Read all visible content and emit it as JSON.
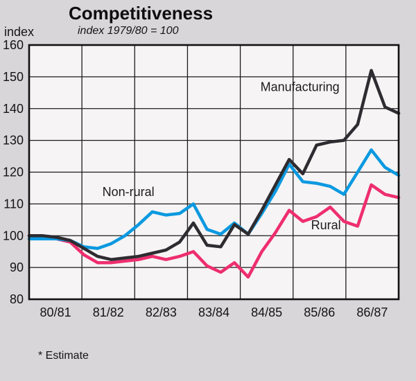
{
  "header": {
    "title": "Competitiveness",
    "subtitle": "index 1979/80 = 100"
  },
  "footnote": "* Estimate",
  "y_axis_title": "index",
  "colors": {
    "background": "#d8d6d8",
    "plot_background": "#f6f4f5",
    "grid": "#1c1c1c",
    "frame": "#111111",
    "text": "#141414",
    "manufacturing": "#2e2c30",
    "non_rural": "#0b99e0",
    "rural": "#ee2e6e"
  },
  "chart_data": {
    "type": "line",
    "title": "Competitiveness",
    "subtitle": "index 1979/80 = 100",
    "ylabel": "index",
    "ylim": [
      80,
      160
    ],
    "ytick_step": 10,
    "y_ticks": [
      80,
      90,
      100,
      110,
      120,
      130,
      140,
      150,
      160
    ],
    "grid": true,
    "categories": [
      "80/81",
      "81/82",
      "82/83",
      "83/84",
      "84/85",
      "85/86",
      "86/87"
    ],
    "points_per_category": 4,
    "footnote": "* Estimate",
    "series": [
      {
        "name": "Manufacturing",
        "color": "#2e2c30",
        "label_at": [
          16.9,
          145.5
        ],
        "values": [
          100,
          100,
          99.5,
          98.5,
          96,
          93.5,
          92.5,
          93,
          93.5,
          94.5,
          95.5,
          98,
          104,
          97,
          96.5,
          103.5,
          100.5,
          108,
          116,
          124,
          119.5,
          128.5,
          129.5,
          130,
          135,
          152,
          140.5,
          138.5
        ]
      },
      {
        "name": "Non-rural",
        "color": "#0b99e0",
        "label_at": [
          5.35,
          112.5
        ],
        "values": [
          99,
          99,
          99,
          98.5,
          96.5,
          96,
          97.5,
          100,
          103.5,
          107.5,
          106.5,
          107,
          110,
          102,
          100.5,
          104,
          100.5,
          107,
          114,
          122.5,
          117,
          116.5,
          115.5,
          113,
          120,
          127,
          121.5,
          119
        ]
      },
      {
        "name": "Rural",
        "color": "#ee2e6e",
        "label_at": [
          20.6,
          102
        ],
        "values": [
          100,
          99.5,
          99,
          98,
          94,
          91.5,
          91.5,
          92,
          92.5,
          93.5,
          92.5,
          93.5,
          95,
          90.5,
          88.5,
          91.5,
          87,
          95,
          101,
          108,
          104.5,
          106,
          109,
          104.5,
          103,
          116,
          113,
          112
        ]
      }
    ]
  }
}
